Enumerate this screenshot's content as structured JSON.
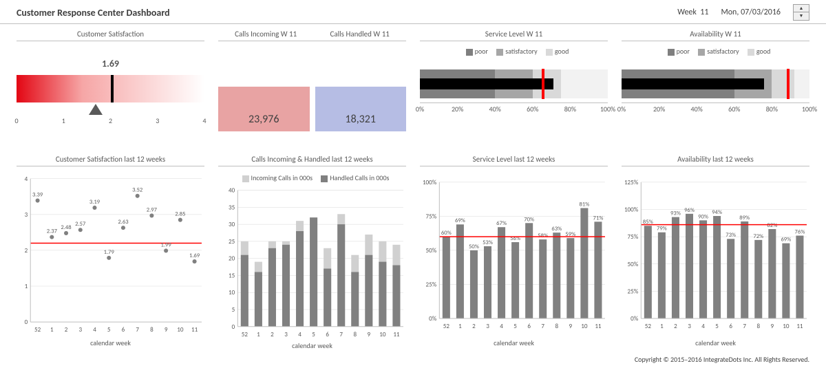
{
  "header": {
    "title": "Customer Response Center Dashboard",
    "week_label": "Week",
    "week_number": "11",
    "date": "Mon, 07/03/2016"
  },
  "panels": {
    "csat": {
      "title": "Customer Satisfaction",
      "value": 1.69,
      "value_text": "1.69",
      "target": 2.0,
      "min": 0,
      "max": 4,
      "ticks": [
        0,
        1,
        2,
        3,
        4
      ],
      "gradient_from": "#e30613",
      "gradient_mid": "#f6a6a6",
      "gradient_to": "#ffffff",
      "target_color": "#000000",
      "actual_color": "#595959"
    },
    "calls": {
      "title_incoming": "Calls Incoming W 11",
      "title_handled": "Calls Handled W 11",
      "incoming": "23,976",
      "handled": "18,321",
      "incoming_bg": "#e8a3a3",
      "handled_bg": "#b6bde4"
    },
    "service_level": {
      "title": "Service Level W 11",
      "legend": {
        "poor": "#7f7f7f",
        "satisfactory": "#a6a6a6",
        "good": "#d9d9d9"
      },
      "bands": [
        {
          "from": 0,
          "to": 40,
          "color": "#7f7f7f"
        },
        {
          "from": 40,
          "to": 60,
          "color": "#a6a6a6"
        },
        {
          "from": 60,
          "to": 75,
          "color": "#d9d9d9"
        },
        {
          "from": 75,
          "to": 100,
          "color": "#f2f2f2"
        }
      ],
      "measure": 71,
      "target": 65,
      "ticks": [
        0,
        20,
        40,
        60,
        80,
        100
      ]
    },
    "availability": {
      "title": "Availability W 11",
      "legend": {
        "poor": "#7f7f7f",
        "satisfactory": "#a6a6a6",
        "good": "#d9d9d9"
      },
      "bands": [
        {
          "from": 0,
          "to": 60,
          "color": "#7f7f7f"
        },
        {
          "from": 60,
          "to": 80,
          "color": "#a6a6a6"
        },
        {
          "from": 80,
          "to": 92,
          "color": "#d9d9d9"
        },
        {
          "from": 92,
          "to": 100,
          "color": "#f2f2f2"
        }
      ],
      "measure": 76,
      "target": 88,
      "ticks": [
        0,
        20,
        40,
        60,
        80,
        100
      ]
    },
    "csat_trend": {
      "title": "Customer Satisfaction last 12 weeks",
      "xlabel": "calendar week",
      "ylim": [
        0,
        4
      ],
      "ytick_step": 1,
      "categories": [
        "52",
        "1",
        "2",
        "3",
        "4",
        "5",
        "6",
        "7",
        "8",
        "9",
        "10",
        "11"
      ],
      "values": [
        3.39,
        2.37,
        2.48,
        2.57,
        3.19,
        1.79,
        2.63,
        3.52,
        2.97,
        1.99,
        2.85,
        1.69
      ],
      "target": 2.2,
      "point_color": "#808080",
      "target_color": "#ff0000",
      "label_color": "#595959"
    },
    "calls_trend": {
      "title": "Calls Incoming & Handled last 12 weeks",
      "xlabel": "calendar week",
      "legend": {
        "incoming": "Incoming Calls in 000s",
        "incoming_color": "#d0d0d0",
        "handled": "Handled Calls in 000s",
        "handled_color": "#808080"
      },
      "ylim": [
        0,
        40
      ],
      "ytick_step": 5,
      "categories": [
        "52",
        "1",
        "2",
        "3",
        "4",
        "5",
        "6",
        "7",
        "8",
        "9",
        "10",
        "11"
      ],
      "incoming": [
        25,
        19,
        25,
        25,
        31,
        32,
        23,
        33,
        21,
        27,
        25,
        24
      ],
      "handled": [
        21,
        16,
        23,
        24,
        28,
        32,
        17,
        30,
        16,
        21,
        19,
        18
      ]
    },
    "sl_trend": {
      "title": "Service Level last 12 weeks",
      "xlabel": "calendar week",
      "ylim": [
        0,
        100
      ],
      "ytick_step": 25,
      "categories": [
        "52",
        "1",
        "2",
        "3",
        "4",
        "5",
        "6",
        "7",
        "8",
        "9",
        "10",
        "11"
      ],
      "values": [
        60,
        69,
        50,
        53,
        67,
        56,
        70,
        58,
        63,
        59,
        81,
        71
      ],
      "target": 60,
      "bar_color": "#808080",
      "target_color": "#ff0000",
      "tick_suffix": "%"
    },
    "avail_trend": {
      "title": "Availability last 12 weeks",
      "xlabel": "calendar week",
      "ylim": [
        0,
        125
      ],
      "ytick_step": 25,
      "categories": [
        "52",
        "1",
        "2",
        "3",
        "4",
        "5",
        "6",
        "7",
        "8",
        "9",
        "10",
        "11"
      ],
      "values": [
        85,
        79,
        93,
        96,
        90,
        94,
        73,
        89,
        72,
        82,
        69,
        76
      ],
      "target": 86,
      "bar_color": "#808080",
      "target_color": "#ff0000",
      "tick_suffix": "%"
    }
  },
  "legend_labels": {
    "poor": "poor",
    "satisfactory": "satisfactory",
    "good": "good"
  },
  "footer": "Copyright © 2015–2016 IntegrateDots Inc. All Rights Reserved."
}
